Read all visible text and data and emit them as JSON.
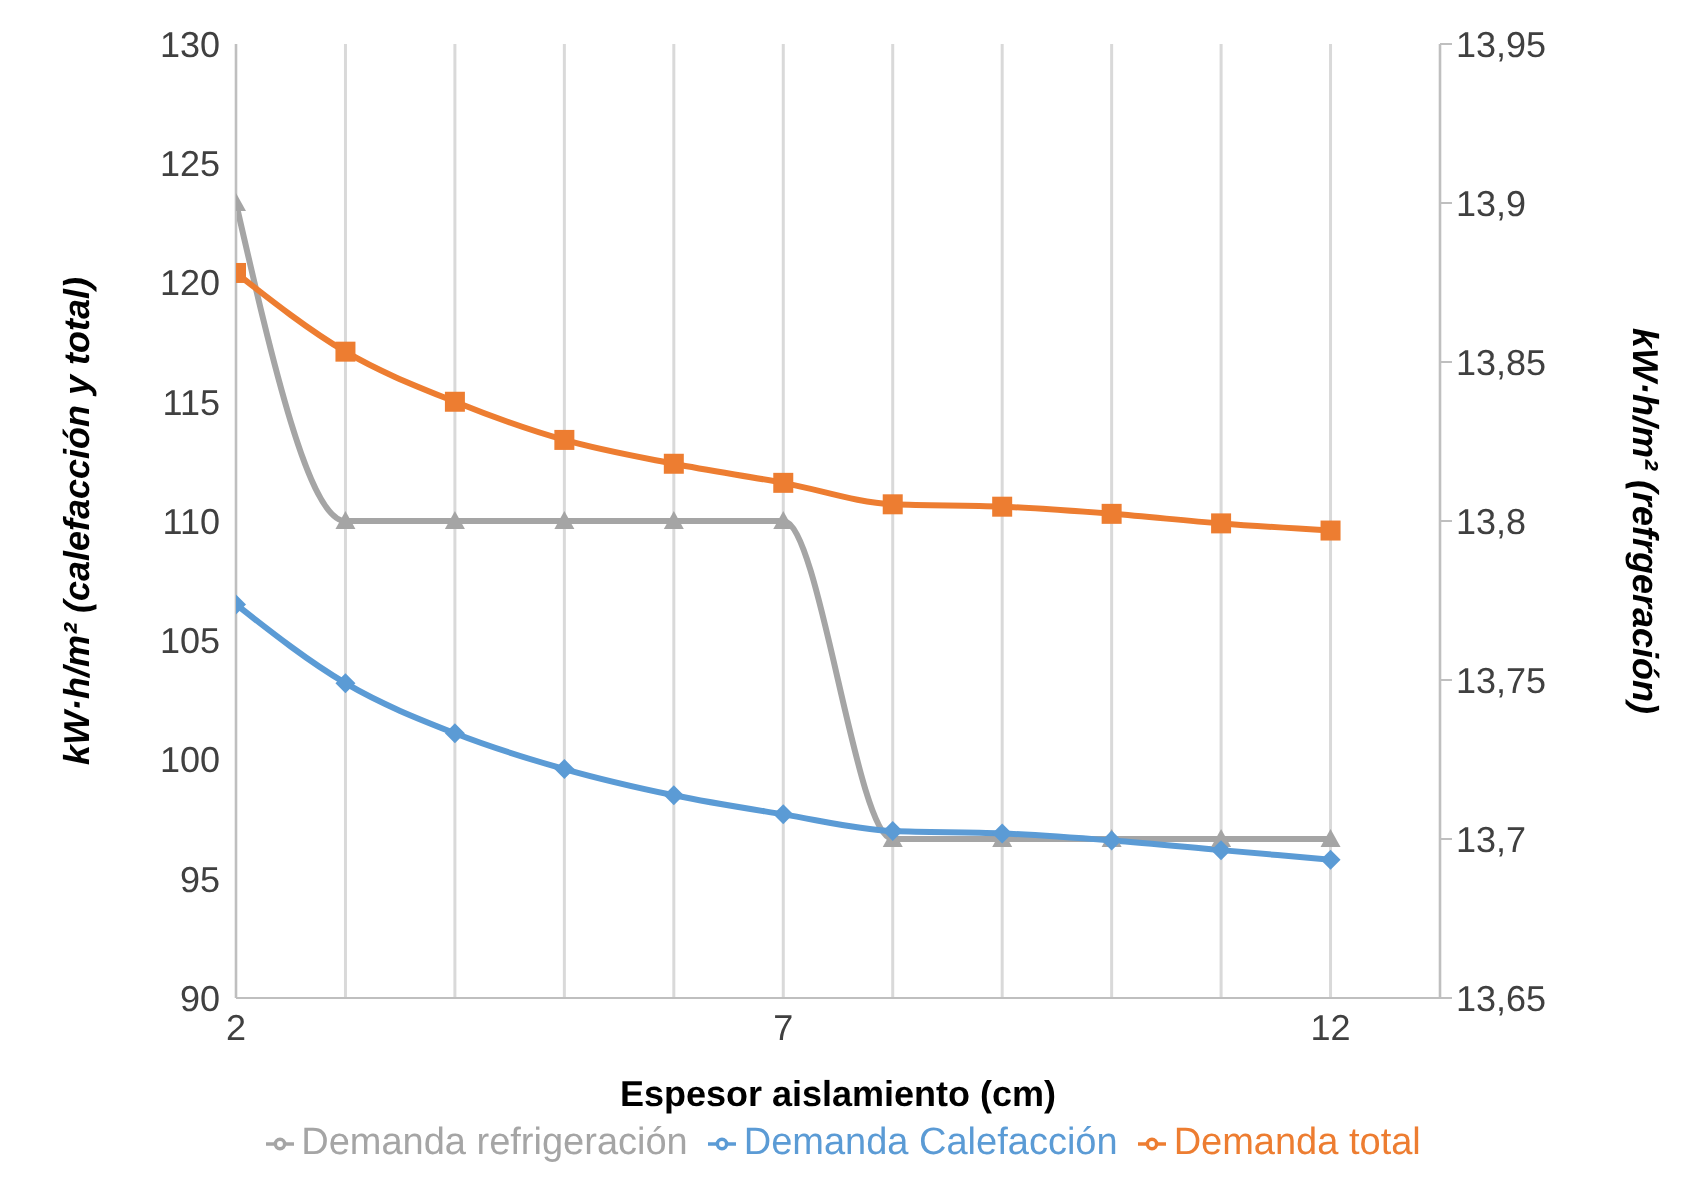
{
  "chart_data": {
    "type": "line",
    "xlabel": "Espesor aislamiento (cm)",
    "ylabel": "kW·h/m² (calefacción y total)",
    "y2label": "kW·h/m² (refrgeración)",
    "x": [
      2,
      3,
      4,
      5,
      6,
      7,
      8,
      9,
      10,
      11,
      12
    ],
    "xlim": [
      2,
      13
    ],
    "xticks": [
      2,
      {
        "value": 3,
        "label": null
      },
      {
        "value": 4,
        "label": null
      },
      {
        "value": 5,
        "label": null
      },
      {
        "value": 6,
        "label": null
      },
      7,
      {
        "value": 8,
        "label": null
      },
      {
        "value": 9,
        "label": null
      },
      {
        "value": 10,
        "label": null
      },
      {
        "value": 11,
        "label": null
      },
      12
    ],
    "ylim": [
      90,
      130
    ],
    "yticks": [
      90,
      95,
      100,
      105,
      110,
      115,
      120,
      125,
      130
    ],
    "y2lim": [
      13.65,
      13.95
    ],
    "y2ticks": [
      {
        "value": 13.65,
        "label": "13,65"
      },
      {
        "value": 13.7,
        "label": "13,7"
      },
      {
        "value": 13.75,
        "label": "13,75"
      },
      {
        "value": 13.8,
        "label": "13,8"
      },
      {
        "value": 13.85,
        "label": "13,85"
      },
      {
        "value": 13.9,
        "label": "13,9"
      },
      {
        "value": 13.95,
        "label": "13,95"
      }
    ],
    "grid": "x",
    "legend": "bottom",
    "series": [
      {
        "name": "Demanda Calefacción",
        "color": "#5b9bd5",
        "marker": "diamond",
        "values": [
          106.5,
          103.2,
          101.1,
          99.6,
          98.5,
          97.7,
          97.0,
          96.9,
          96.6,
          96.2,
          95.8
        ]
      },
      {
        "name": "Demanda total",
        "color": "#ed7d31",
        "marker": "square",
        "values": [
          120.4,
          117.1,
          115.0,
          113.4,
          112.4,
          111.6,
          110.7,
          110.6,
          110.3,
          109.9,
          109.6
        ]
      },
      {
        "name": "Demanda refrigeración",
        "color": "#a5a5a5",
        "marker": "triangle",
        "axis": "y2",
        "values": [
          13.9,
          13.8,
          13.8,
          13.8,
          13.8,
          13.8,
          13.7,
          13.7,
          13.7,
          13.7,
          13.7
        ]
      }
    ]
  }
}
